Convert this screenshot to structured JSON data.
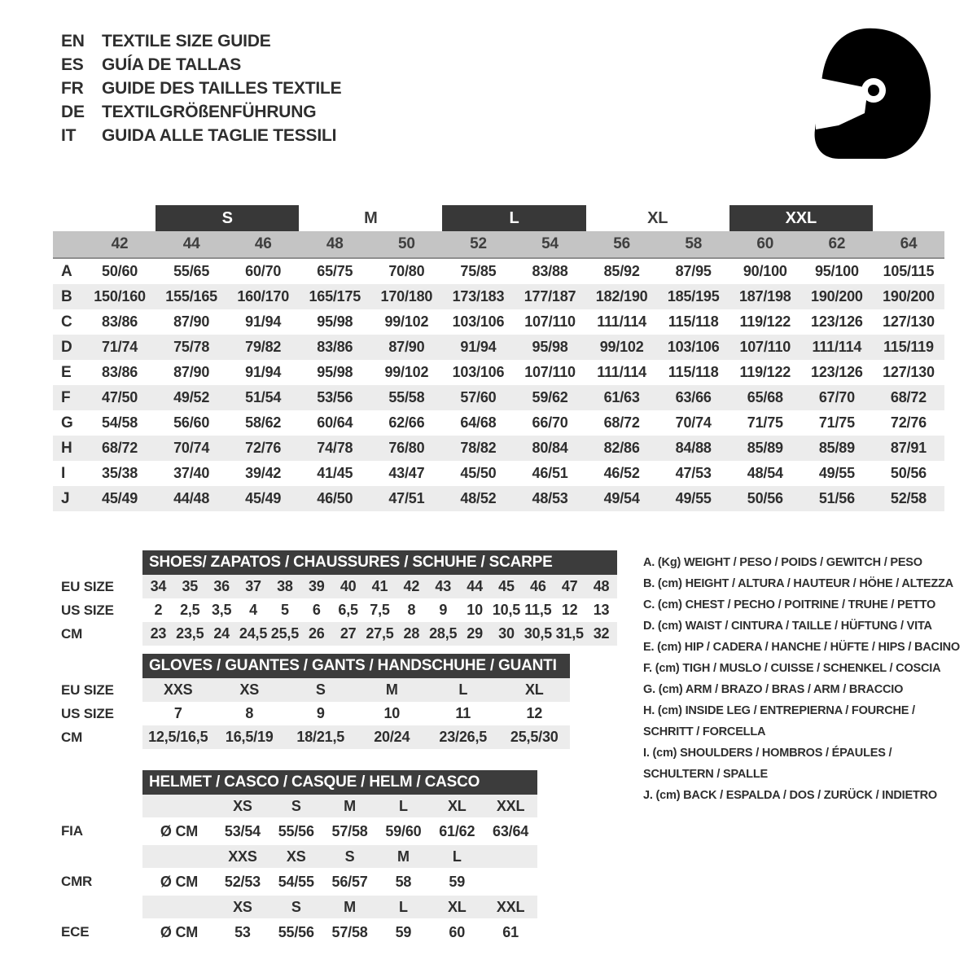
{
  "header": {
    "languages": [
      {
        "code": "EN",
        "title": "TEXTILE SIZE GUIDE"
      },
      {
        "code": "ES",
        "title": "GUÍA DE TALLAS"
      },
      {
        "code": "FR",
        "title": "GUIDE DES TAILLES TEXTILE"
      },
      {
        "code": "DE",
        "title": "TEXTILGRÖßENFÜHRUNG"
      },
      {
        "code": "IT",
        "title": "GUIDA ALLE TAGLIE TESSILI"
      }
    ]
  },
  "icons": {
    "helmet": "racing-helmet-icon"
  },
  "colors": {
    "dark_block": "#383838",
    "title_bar": "#3c3c3c",
    "number_band": "#c4c4c4",
    "stripe": "#ececec",
    "text": "#2e2e2e"
  },
  "size_table": {
    "letter_groups": [
      {
        "label": "S",
        "block": true
      },
      {
        "label": "M",
        "block": false
      },
      {
        "label": "L",
        "block": true
      },
      {
        "label": "XL",
        "block": false
      },
      {
        "label": "XXL",
        "block": true
      }
    ],
    "numeric_sizes": [
      "42",
      "44",
      "46",
      "48",
      "50",
      "52",
      "54",
      "56",
      "58",
      "60",
      "62",
      "64"
    ],
    "rows": [
      {
        "label": "A",
        "values": [
          "50/60",
          "55/65",
          "60/70",
          "65/75",
          "70/80",
          "75/85",
          "83/88",
          "85/92",
          "87/95",
          "90/100",
          "95/100",
          "105/115"
        ]
      },
      {
        "label": "B",
        "values": [
          "150/160",
          "155/165",
          "160/170",
          "165/175",
          "170/180",
          "173/183",
          "177/187",
          "182/190",
          "185/195",
          "187/198",
          "190/200",
          "190/200"
        ]
      },
      {
        "label": "C",
        "values": [
          "83/86",
          "87/90",
          "91/94",
          "95/98",
          "99/102",
          "103/106",
          "107/110",
          "111/114",
          "115/118",
          "119/122",
          "123/126",
          "127/130"
        ]
      },
      {
        "label": "D",
        "values": [
          "71/74",
          "75/78",
          "79/82",
          "83/86",
          "87/90",
          "91/94",
          "95/98",
          "99/102",
          "103/106",
          "107/110",
          "111/114",
          "115/119"
        ]
      },
      {
        "label": "E",
        "values": [
          "83/86",
          "87/90",
          "91/94",
          "95/98",
          "99/102",
          "103/106",
          "107/110",
          "111/114",
          "115/118",
          "119/122",
          "123/126",
          "127/130"
        ]
      },
      {
        "label": "F",
        "values": [
          "47/50",
          "49/52",
          "51/54",
          "53/56",
          "55/58",
          "57/60",
          "59/62",
          "61/63",
          "63/66",
          "65/68",
          "67/70",
          "68/72"
        ]
      },
      {
        "label": "G",
        "values": [
          "54/58",
          "56/60",
          "58/62",
          "60/64",
          "62/66",
          "64/68",
          "66/70",
          "68/72",
          "70/74",
          "71/75",
          "71/75",
          "72/76"
        ]
      },
      {
        "label": "H",
        "values": [
          "68/72",
          "70/74",
          "72/76",
          "74/78",
          "76/80",
          "78/82",
          "80/84",
          "82/86",
          "84/88",
          "85/89",
          "85/89",
          "87/91"
        ]
      },
      {
        "label": "I",
        "values": [
          "35/38",
          "37/40",
          "39/42",
          "41/45",
          "43/47",
          "45/50",
          "46/51",
          "46/52",
          "47/53",
          "48/54",
          "49/55",
          "50/56"
        ]
      },
      {
        "label": "J",
        "values": [
          "45/49",
          "44/48",
          "45/49",
          "46/50",
          "47/51",
          "48/52",
          "48/53",
          "49/54",
          "49/55",
          "50/56",
          "51/56",
          "52/58"
        ]
      }
    ]
  },
  "shoes": {
    "title": "SHOES/ ZAPATOS / CHAUSSURES / SCHUHE / SCARPE",
    "rows": [
      {
        "label": "EU SIZE",
        "band": true,
        "values": [
          "34",
          "35",
          "36",
          "37",
          "38",
          "39",
          "40",
          "41",
          "42",
          "43",
          "44",
          "45",
          "46",
          "47",
          "48"
        ]
      },
      {
        "label": "US SIZE",
        "band": false,
        "values": [
          "2",
          "2,5",
          "3,5",
          "4",
          "5",
          "6",
          "6,5",
          "7,5",
          "8",
          "9",
          "10",
          "10,5",
          "11,5",
          "12",
          "13"
        ]
      },
      {
        "label": "CM",
        "band": true,
        "values": [
          "23",
          "23,5",
          "24",
          "24,5",
          "25,5",
          "26",
          "27",
          "27,5",
          "28",
          "28,5",
          "29",
          "30",
          "30,5",
          "31,5",
          "32"
        ]
      }
    ]
  },
  "gloves": {
    "title": "GLOVES / GUANTES / GANTS / HANDSCHUHE / GUANTI",
    "rows": [
      {
        "label": "EU SIZE",
        "band": true,
        "values": [
          "XXS",
          "XS",
          "S",
          "M",
          "L",
          "XL"
        ]
      },
      {
        "label": "US SIZE",
        "band": false,
        "values": [
          "7",
          "8",
          "9",
          "10",
          "11",
          "12"
        ]
      },
      {
        "label": "CM",
        "band": true,
        "values": [
          "12,5/16,5",
          "16,5/19",
          "18/21,5",
          "20/24",
          "23/26,5",
          "25,5/30"
        ]
      }
    ]
  },
  "helmet": {
    "title": "HELMET / CASCO / CASQUE / HELM / CASCO",
    "sections": [
      {
        "label": "FIA",
        "unit": "Ø CM",
        "sizes": [
          "XS",
          "S",
          "M",
          "L",
          "XL",
          "XXL"
        ],
        "values": [
          "53/54",
          "55/56",
          "57/58",
          "59/60",
          "61/62",
          "63/64"
        ]
      },
      {
        "label": "CMR",
        "unit": "Ø CM",
        "sizes": [
          "XXS",
          "XS",
          "S",
          "M",
          "L",
          ""
        ],
        "values": [
          "52/53",
          "54/55",
          "56/57",
          "58",
          "59",
          ""
        ]
      },
      {
        "label": "ECE",
        "unit": "Ø CM",
        "sizes": [
          "XS",
          "S",
          "M",
          "L",
          "XL",
          "XXL"
        ],
        "values": [
          "53",
          "55/56",
          "57/58",
          "59",
          "60",
          "61"
        ]
      }
    ]
  },
  "legend": {
    "items": [
      "A. (Kg) WEIGHT / PESO / POIDS / GEWITCH / PESO",
      "B. (cm) HEIGHT / ALTURA / HAUTEUR / HÖHE / ALTEZZA",
      "C. (cm) CHEST / PECHO / POITRINE / TRUHE / PETTO",
      "D. (cm) WAIST / CINTURA / TAILLE / HÜFTUNG / VITA",
      "E. (cm) HIP / CADERA / HANCHE / HÜFTE / HIPS / BACINO",
      "F. (cm) TIGH / MUSLO / CUISSE / SCHENKEL / COSCIA",
      "G. (cm) ARM / BRAZO / BRAS / ARM / BRACCIO",
      "H. (cm) INSIDE LEG / ENTREPIERNA / FOURCHE /\nSCHRITT / FORCELLA",
      "I. (cm) SHOULDERS / HOMBROS / ÉPAULES /\nSCHULTERN / SPALLE",
      "J. (cm) BACK / ESPALDA / DOS / ZURÜCK / INDIETRO"
    ]
  }
}
